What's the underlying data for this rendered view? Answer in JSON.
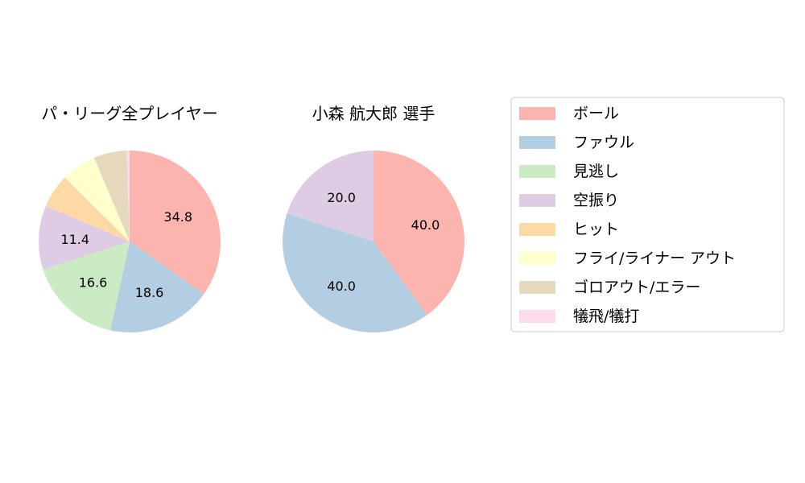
{
  "chart_data": [
    {
      "type": "pie",
      "title": "パ・リーグ全プレイヤー",
      "categories": [
        "ボール",
        "ファウル",
        "見逃し",
        "空振り",
        "ヒット",
        "フライ/ライナー アウト",
        "ゴロアウト/エラー",
        "犠飛/犠打"
      ],
      "values": [
        34.8,
        18.6,
        16.6,
        11.4,
        6.0,
        6.2,
        5.9,
        0.5
      ],
      "value_labels": [
        "34.8",
        "18.6",
        "16.6",
        "11.4",
        "",
        "",
        "",
        ""
      ]
    },
    {
      "type": "pie",
      "title": "小森 航大郎  選手",
      "categories": [
        "ボール",
        "ファウル",
        "見逃し",
        "空振り",
        "ヒット",
        "フライ/ライナー アウト",
        "ゴロアウト/エラー",
        "犠飛/犠打"
      ],
      "values": [
        40.0,
        40.0,
        0,
        20.0,
        0,
        0,
        0,
        0
      ],
      "value_labels": [
        "40.0",
        "40.0",
        "",
        "20.0",
        "",
        "",
        "",
        ""
      ]
    }
  ],
  "legend": {
    "placement": "right",
    "items": [
      {
        "label": "ボール",
        "color": "#fbb4ae"
      },
      {
        "label": "ファウル",
        "color": "#b3cde3"
      },
      {
        "label": "見逃し",
        "color": "#ccebc5"
      },
      {
        "label": "空振り",
        "color": "#decbe4"
      },
      {
        "label": "ヒット",
        "color": "#fed9a6"
      },
      {
        "label": "フライ/ライナー アウト",
        "color": "#ffffcc"
      },
      {
        "label": "ゴロアウト/エラー",
        "color": "#e5d8bd"
      },
      {
        "label": "犠飛/犠打",
        "color": "#fddaec"
      }
    ]
  }
}
